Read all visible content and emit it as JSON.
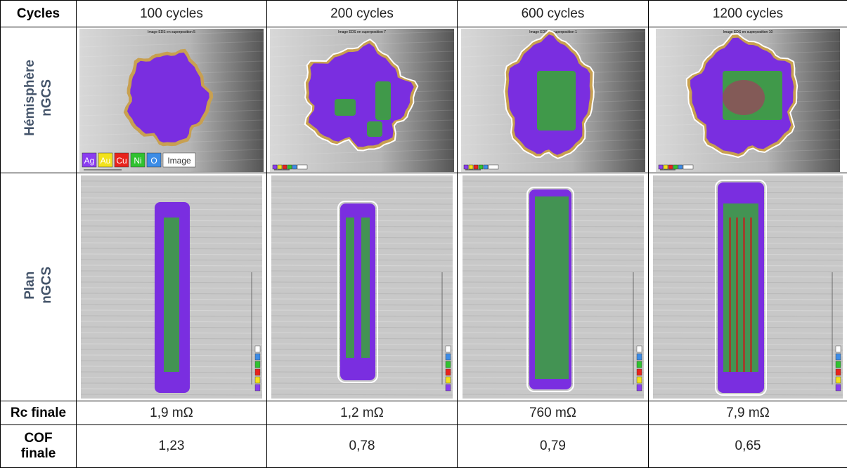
{
  "table": {
    "header": [
      "Cycles",
      "100 cycles",
      "200 cycles",
      "600 cycles",
      "1200 cycles"
    ],
    "image_rows": [
      {
        "label": [
          "Hémisphère",
          "nGCS"
        ],
        "titles": [
          "Image EDS en superposition 5",
          "Image EDS en superposition 7",
          "Image EDS en superposition 1",
          "Image EDS en superposition 10"
        ]
      },
      {
        "label": [
          "Plan",
          "nGCS"
        ]
      }
    ],
    "legend": [
      "Ag",
      "Au",
      "Cu",
      "Ni",
      "O",
      "Image"
    ],
    "rows": [
      {
        "label": [
          "Rc finale"
        ],
        "cells": [
          "1,9 mΩ",
          "1,2 mΩ",
          "760 mΩ",
          "7,9 mΩ"
        ]
      },
      {
        "label": [
          "COF",
          "finale"
        ],
        "cells": [
          "1,23",
          "0,78",
          "0,79",
          "0,65"
        ]
      }
    ]
  }
}
